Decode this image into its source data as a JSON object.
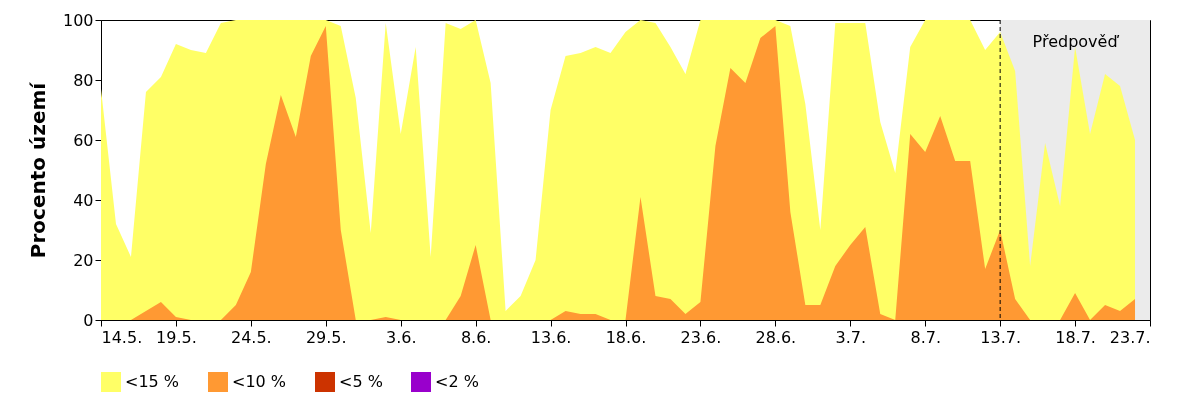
{
  "chart_data": {
    "type": "area",
    "ylabel": "Procento území",
    "x": [
      "--05-14",
      "--05-15",
      "--05-16",
      "--05-17",
      "--05-18",
      "--05-19",
      "--05-20",
      "--05-21",
      "--05-22",
      "--05-23",
      "--05-24",
      "--05-25",
      "--05-26",
      "--05-27",
      "--05-28",
      "--05-29",
      "--05-30",
      "--05-31",
      "--06-01",
      "--06-02",
      "--06-03",
      "--06-04",
      "--06-05",
      "--06-06",
      "--06-07",
      "--06-08",
      "--06-09",
      "--06-10",
      "--06-11",
      "--06-12",
      "--06-13",
      "--06-14",
      "--06-15",
      "--06-16",
      "--06-17",
      "--06-18",
      "--06-19",
      "--06-20",
      "--06-21",
      "--06-22",
      "--06-23",
      "--06-24",
      "--06-25",
      "--06-26",
      "--06-27",
      "--06-28",
      "--06-29",
      "--06-30",
      "--07-01",
      "--07-02",
      "--07-03",
      "--07-04",
      "--07-05",
      "--07-06",
      "--07-07",
      "--07-08",
      "--07-09",
      "--07-10",
      "--07-11",
      "--07-12",
      "--07-13",
      "--07-14",
      "--07-15",
      "--07-16",
      "--07-17",
      "--07-18",
      "--07-19",
      "--07-20",
      "--07-21",
      "--07-22"
    ],
    "series": [
      {
        "name": "<15 %",
        "color": "#ffff66",
        "values": [
          77,
          32,
          21,
          76,
          81,
          92,
          90,
          89,
          99,
          100,
          100,
          100,
          100,
          100,
          100,
          100,
          98,
          74,
          29,
          99,
          62,
          91,
          21,
          99,
          97,
          100,
          79,
          3,
          8,
          20,
          70,
          88,
          89,
          91,
          89,
          96,
          100,
          99,
          91,
          82,
          100,
          100,
          100,
          100,
          100,
          100,
          98,
          72,
          30,
          99,
          99,
          99,
          66,
          49,
          91,
          100,
          100,
          100,
          100,
          90,
          96,
          83,
          18,
          59,
          38,
          91,
          62,
          82,
          78,
          60
        ]
      },
      {
        "name": "<10 %",
        "color": "#ff9933",
        "values": [
          0,
          0,
          0,
          3,
          6,
          1,
          0,
          0,
          0,
          5,
          16,
          52,
          75,
          61,
          88,
          98,
          30,
          0,
          0,
          1,
          0,
          0,
          0,
          0,
          8,
          25,
          0,
          0,
          0,
          0,
          0,
          3,
          2,
          2,
          0,
          0,
          41,
          8,
          7,
          2,
          6,
          58,
          84,
          79,
          94,
          98,
          36,
          5,
          5,
          18,
          25,
          31,
          2,
          0,
          62,
          56,
          68,
          53,
          53,
          17,
          30,
          7,
          0,
          0,
          0,
          9,
          0,
          5,
          3,
          7
        ]
      },
      {
        "name": "<5 %",
        "color": "#cc3300",
        "values": [
          null,
          null,
          null,
          null,
          null,
          null,
          null,
          null,
          null,
          null,
          null,
          null,
          null,
          null,
          null,
          null,
          null,
          null,
          null,
          null,
          null,
          null,
          null,
          null,
          null,
          null,
          null,
          null,
          null,
          null,
          null,
          null,
          null,
          null,
          null,
          null,
          null,
          null,
          null,
          null,
          null,
          null,
          null,
          null,
          null,
          null,
          null,
          null,
          null,
          null,
          null,
          null,
          null,
          null,
          null,
          null,
          null,
          null,
          null,
          null,
          null,
          null,
          null,
          null,
          null,
          null,
          null,
          null,
          null,
          null
        ]
      },
      {
        "name": "<2 %",
        "color": "#9900cc",
        "values": [
          null,
          null,
          null,
          null,
          null,
          null,
          null,
          null,
          null,
          null,
          null,
          null,
          null,
          null,
          null,
          null,
          null,
          null,
          null,
          null,
          null,
          null,
          null,
          null,
          null,
          null,
          null,
          null,
          null,
          null,
          null,
          null,
          null,
          null,
          null,
          null,
          null,
          null,
          null,
          null,
          null,
          null,
          null,
          null,
          null,
          null,
          null,
          null,
          null,
          null,
          null,
          null,
          null,
          null,
          null,
          null,
          null,
          null,
          null,
          null,
          null,
          null,
          null,
          null,
          null,
          null,
          null,
          null,
          null,
          null
        ]
      }
    ],
    "xlim": [
      "--05-14",
      "--07-23"
    ],
    "xticks": [
      {
        "value": "--05-14",
        "label": "14.5."
      },
      {
        "value": "--05-19",
        "label": "19.5."
      },
      {
        "value": "--05-24",
        "label": "24.5."
      },
      {
        "value": "--05-29",
        "label": "29.5."
      },
      {
        "value": "--06-03",
        "label": "3.6."
      },
      {
        "value": "--06-08",
        "label": "8.6."
      },
      {
        "value": "--06-13",
        "label": "13.6."
      },
      {
        "value": "--06-18",
        "label": "18.6."
      },
      {
        "value": "--06-23",
        "label": "23.6."
      },
      {
        "value": "--06-28",
        "label": "28.6."
      },
      {
        "value": "--07-03",
        "label": "3.7."
      },
      {
        "value": "--07-08",
        "label": "8.7."
      },
      {
        "value": "--07-13",
        "label": "13.7."
      },
      {
        "value": "--07-18",
        "label": "18.7."
      },
      {
        "value": "--07-23",
        "label": "23.7."
      }
    ],
    "ylim": [
      0,
      100
    ],
    "yticks": [
      0,
      20,
      40,
      60,
      80,
      100
    ],
    "bands": [
      {
        "axis": "x",
        "from": "--07-13",
        "to": "--07-23",
        "label": "Předpověď",
        "color": "#ebebeb"
      }
    ],
    "ref_lines": [
      {
        "axis": "x",
        "value": "--07-13",
        "line_style": "dashed"
      }
    ],
    "grid": false,
    "legend": "bottom left"
  }
}
